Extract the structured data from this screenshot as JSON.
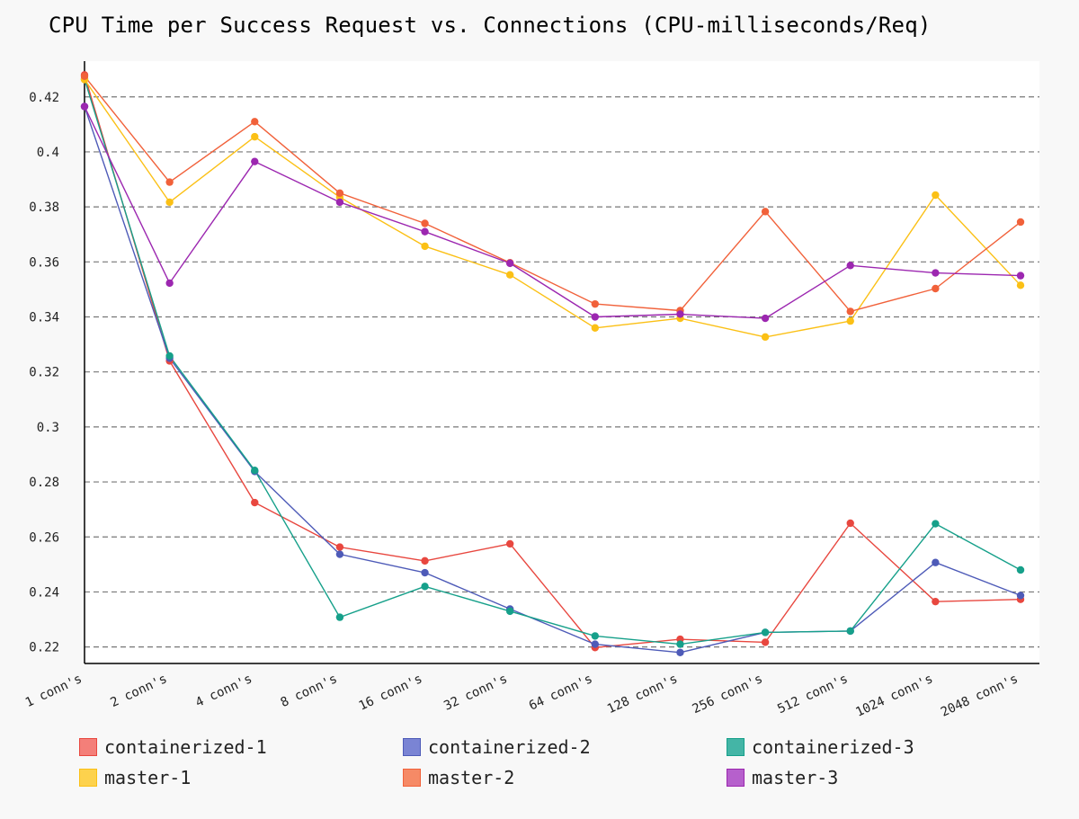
{
  "chart_data": {
    "type": "line",
    "title": "CPU Time per Success Request vs. Connections (CPU-milliseconds/Req)",
    "xlabel": "",
    "ylabel": "",
    "categories": [
      "1 conn's",
      "2 conn's",
      "4 conn's",
      "8 conn's",
      "16 conn's",
      "32 conn's",
      "64 conn's",
      "128 conn's",
      "256 conn's",
      "512 conn's",
      "1024 conn's",
      "2048 conn's"
    ],
    "ylim": [
      0.214,
      0.433
    ],
    "yticks": [
      0.22,
      0.24,
      0.26,
      0.28,
      0.3,
      0.32,
      0.34,
      0.36,
      0.38,
      0.4,
      0.42
    ],
    "ytick_labels": [
      "0.22",
      "0.24",
      "0.26",
      "0.28",
      "0.3",
      "0.32",
      "0.34",
      "0.36",
      "0.38",
      "0.4",
      "0.42"
    ],
    "grid": "horizontal dashed",
    "legend_position": "bottom",
    "series": [
      {
        "name": "containerized-1",
        "color": "#e8473f",
        "swatch": "#f47f79",
        "values": [
          0.428,
          0.324,
          0.2725,
          0.2563,
          0.2513,
          0.2575,
          0.2198,
          0.2228,
          0.2217,
          0.265,
          0.2365,
          0.2373
        ]
      },
      {
        "name": "containerized-2",
        "color": "#4e5bb8",
        "swatch": "#7a84d4",
        "values": [
          0.4165,
          0.325,
          0.2838,
          0.2537,
          0.247,
          0.2338,
          0.221,
          0.218,
          0.2253,
          0.2258,
          0.2507,
          0.2387
        ]
      },
      {
        "name": "containerized-3",
        "color": "#16a08a",
        "swatch": "#44b5a6",
        "values": [
          0.4265,
          0.3258,
          0.2842,
          0.2308,
          0.242,
          0.233,
          0.224,
          0.221,
          0.2253,
          0.2258,
          0.2648,
          0.248
        ]
      },
      {
        "name": "master-1",
        "color": "#fbc015",
        "swatch": "#fdd24d",
        "values": [
          0.4263,
          0.3817,
          0.4055,
          0.3835,
          0.3657,
          0.3553,
          0.336,
          0.3395,
          0.3327,
          0.3385,
          0.3843,
          0.3515
        ]
      },
      {
        "name": "master-2",
        "color": "#f1613a",
        "swatch": "#f68a66",
        "values": [
          0.4275,
          0.389,
          0.411,
          0.385,
          0.374,
          0.3597,
          0.3447,
          0.3423,
          0.3783,
          0.342,
          0.3503,
          0.3745
        ]
      },
      {
        "name": "master-3",
        "color": "#9c27b0",
        "swatch": "#b660cc",
        "values": [
          0.4165,
          0.3523,
          0.3965,
          0.3817,
          0.371,
          0.3595,
          0.34,
          0.341,
          0.3395,
          0.3587,
          0.356,
          0.355
        ]
      }
    ]
  }
}
